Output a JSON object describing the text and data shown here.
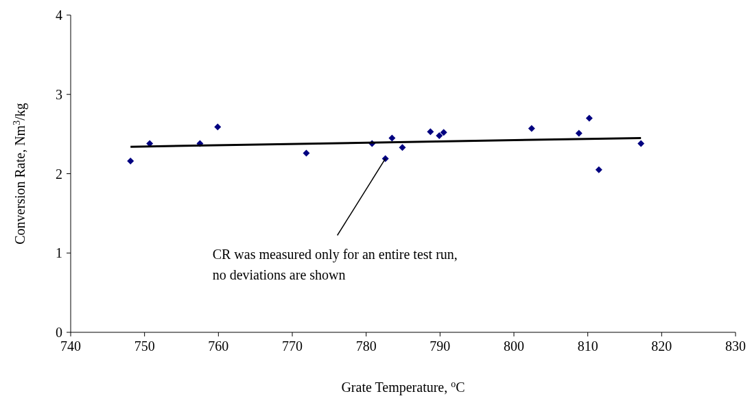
{
  "chart_data": {
    "type": "scatter",
    "xlabel": "Grate Temperature, $^{o}$C",
    "ylabel": "Conversion Rate, Nm$^{3}$/kg",
    "xlim": [
      740,
      830
    ],
    "xticks": [
      740,
      750,
      760,
      770,
      780,
      790,
      800,
      810,
      820,
      830
    ],
    "ylim": [
      0,
      4
    ],
    "yticks": [
      0,
      1,
      2,
      3,
      4
    ],
    "grid": false,
    "marker": "diamond",
    "series": [
      {
        "color": "#000080",
        "x": [
          748.1,
          750.7,
          757.5,
          759.9,
          771.9,
          780.8,
          782.6,
          783.5,
          784.9,
          788.7,
          789.9,
          790.5,
          802.4,
          808.8,
          810.2,
          811.5,
          817.2
        ],
        "values": [
          2.16,
          2.38,
          2.38,
          2.59,
          2.26,
          2.38,
          2.19,
          2.45,
          2.33,
          2.53,
          2.48,
          2.52,
          2.57,
          2.51,
          2.7,
          2.05,
          2.38
        ]
      },
      {
        "type": "line",
        "color": "#000000",
        "marker": "none",
        "line_style": "solid",
        "x": [
          748.1,
          817.2
        ],
        "values": [
          2.34,
          2.45
        ]
      }
    ],
    "annotations": [
      {
        "text": "CR was measured only for an entire test run,\nno deviations are shown",
        "x": 782.6,
        "y": 2.19
      }
    ]
  }
}
